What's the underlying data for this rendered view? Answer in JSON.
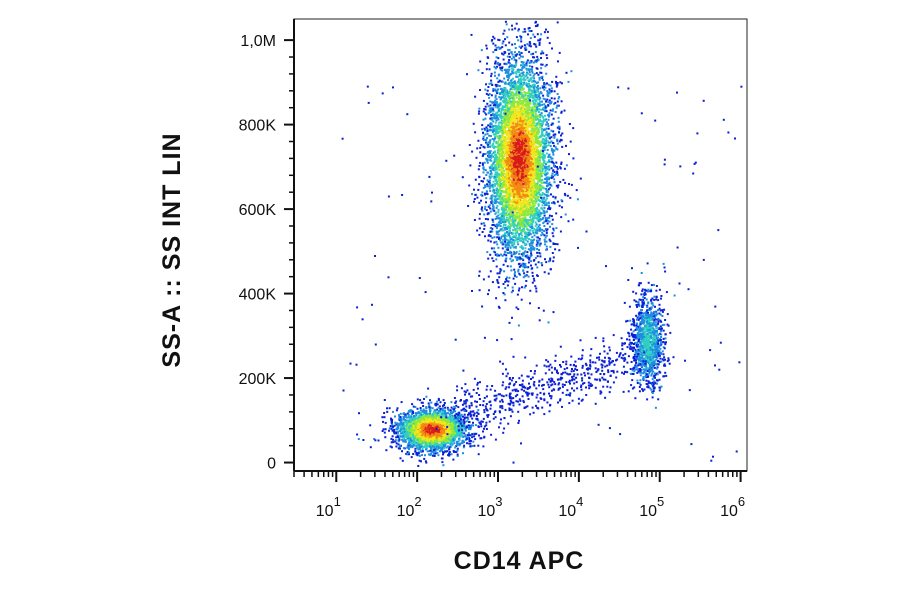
{
  "chart_data": {
    "type": "scatter",
    "subtype": "flow-cytometry density dot plot",
    "title": "",
    "xlabel": "CD14 APC",
    "ylabel": "SS-A :: SS INT LIN",
    "x_scale": "log",
    "y_scale": "linear",
    "xlim": [
      3,
      1200000
    ],
    "ylim": [
      -20000,
      1050000
    ],
    "x_ticks": [
      {
        "value": 10,
        "base": "10",
        "exp": "1"
      },
      {
        "value": 100,
        "base": "10",
        "exp": "2"
      },
      {
        "value": 1000,
        "base": "10",
        "exp": "3"
      },
      {
        "value": 10000,
        "base": "10",
        "exp": "4"
      },
      {
        "value": 100000,
        "base": "10",
        "exp": "5"
      },
      {
        "value": 1000000,
        "base": "10",
        "exp": "6"
      }
    ],
    "y_ticks": [
      {
        "value": 0,
        "label": "0"
      },
      {
        "value": 200000,
        "label": "200K"
      },
      {
        "value": 400000,
        "label": "400K"
      },
      {
        "value": 600000,
        "label": "600K"
      },
      {
        "value": 800000,
        "label": "800K"
      },
      {
        "value": 1000000,
        "label": "1,0M"
      }
    ],
    "colormap": [
      "#0b1fd6",
      "#1f8de0",
      "#2fd0c0",
      "#8fe83a",
      "#f2e61c",
      "#f28a14",
      "#d81a1a"
    ],
    "grid": false,
    "legend": "none",
    "populations": [
      {
        "center_x": 150,
        "center_y": 80000,
        "spread_log_x": 0.22,
        "spread_y": 25000,
        "count": 2600,
        "peak_color": "#d81a1a"
      },
      {
        "center_x": 1800,
        "center_y": 720000,
        "spread_log_x": 0.2,
        "spread_y": 120000,
        "count": 6000,
        "peak_color": "#d81a1a"
      },
      {
        "center_x": 70000,
        "center_y": 290000,
        "spread_log_x": 0.1,
        "spread_y": 55000,
        "count": 1100,
        "peak_color": "#2fd0c0"
      },
      {
        "from_x": 300,
        "from_y": 120000,
        "to_x": 50000,
        "to_y": 250000,
        "count": 550,
        "peak_color": "#0b1fd6"
      }
    ]
  }
}
